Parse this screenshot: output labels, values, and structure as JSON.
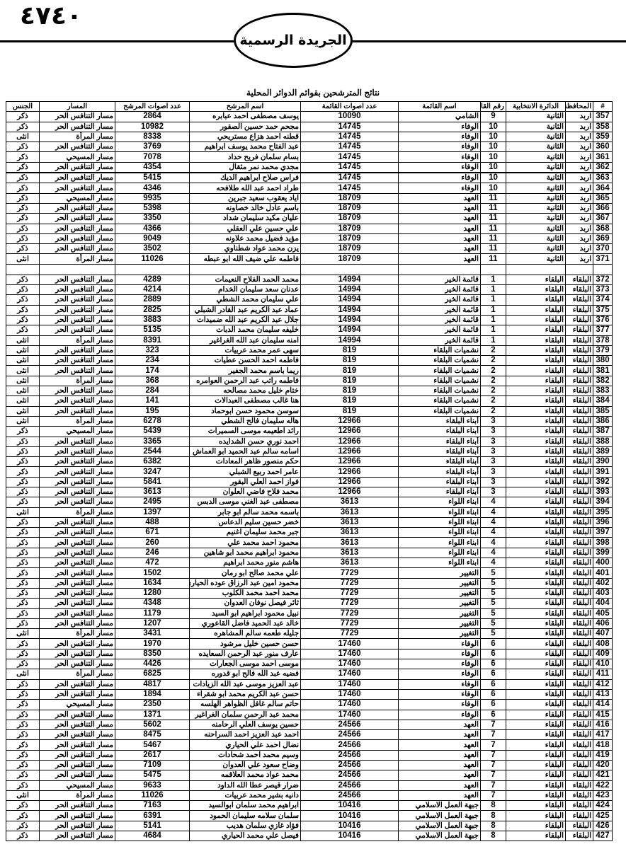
{
  "header": {
    "page_number": "٤٧٤٠",
    "gazette_name": "الجريدة الرسمية"
  },
  "table": {
    "title": "نتائج المترشحين بقوائم الدوائر المحلية",
    "columns": [
      "#",
      "المحافظة",
      "الدائرة الانتخابية",
      "رقم القائمة",
      "اسم القائمة",
      "عدد اصوات القائمة",
      "اسم المرشح",
      "عدد اصوات المرشح",
      "المسار",
      "الجنس"
    ],
    "groups": [
      [
        [
          "357",
          "اربد",
          "الثانية",
          "9",
          "الشامي",
          "10090",
          "يوسف مصطفى احمد عبابره",
          "2864",
          "مسار التنافس الحر",
          "ذكر"
        ],
        [
          "358",
          "اربد",
          "الثانية",
          "10",
          "الوفاء",
          "14745",
          "مجحم حمد حسين الصقور",
          "10982",
          "مسار التنافس الحر",
          "ذكر"
        ],
        [
          "359",
          "اربد",
          "الثانية",
          "10",
          "الوفاء",
          "14745",
          "قطنه احمد هزاع مستريحي",
          "8338",
          "مسار المرأة",
          "انثى"
        ],
        [
          "360",
          "اربد",
          "الثانية",
          "10",
          "الوفاء",
          "14745",
          "عبد الفتاح محمد يوسف ابراهيم",
          "3769",
          "مسار التنافس الحر",
          "ذكر"
        ],
        [
          "361",
          "اربد",
          "الثانية",
          "10",
          "الوفاء",
          "14745",
          "بسام سلمان فريح حداد",
          "7078",
          "مسار المسيحي",
          "ذكر"
        ],
        [
          "362",
          "اربد",
          "الثانية",
          "10",
          "الوفاء",
          "14745",
          "مجدي محمد نمر مثقال",
          "4354",
          "مسار التنافس الحر",
          "ذكر"
        ],
        [
          "363",
          "اربد",
          "الثانية",
          "10",
          "الوفاء",
          "14745",
          "فراس صلاح ابراهيم الديك",
          "5415",
          "مسار التنافس الحر",
          "ذكر"
        ],
        [
          "364",
          "اربد",
          "الثانية",
          "10",
          "الوفاء",
          "14745",
          "طراد احمد عبد الله طلافحه",
          "4346",
          "مسار التنافس الحر",
          "ذكر"
        ],
        [
          "365",
          "اربد",
          "الثانية",
          "11",
          "العهد",
          "18709",
          "اياد يعقوب سعيد جبرين",
          "9935",
          "مسار المسيحي",
          "ذكر"
        ],
        [
          "366",
          "اربد",
          "الثانية",
          "11",
          "العهد",
          "18709",
          "باسم عادل خالد خصاونه",
          "5398",
          "مسار التنافس الحر",
          "ذكر"
        ],
        [
          "367",
          "اربد",
          "الثانية",
          "11",
          "العهد",
          "18709",
          "عليان مكيد سليمان شداد",
          "3350",
          "مسار التنافس الحر",
          "ذكر"
        ],
        [
          "368",
          "اربد",
          "الثانية",
          "11",
          "العهد",
          "18709",
          "علي حسين علي العقلي",
          "4366",
          "مسار التنافس الحر",
          "ذكر"
        ],
        [
          "369",
          "اربد",
          "الثانية",
          "11",
          "العهد",
          "18709",
          "مؤيد فضيل محمد علاونه",
          "9049",
          "مسار التنافس الحر",
          "ذكر"
        ],
        [
          "370",
          "اربد",
          "الثانية",
          "11",
          "العهد",
          "18709",
          "يزن محمد عواد شطناوي",
          "3502",
          "مسار التنافس الحر",
          "ذكر"
        ],
        [
          "371",
          "اربد",
          "الثانية",
          "11",
          "العهد",
          "18709",
          "فاطمه علي ضيف الله ابو عبطه",
          "11026",
          "مسار المرأة",
          "انثى"
        ]
      ],
      [
        [
          "372",
          "البلقاء",
          "البلقاء",
          "1",
          "قائمة الخير",
          "14994",
          "محمد الحمد الفلاح النعيمات",
          "4289",
          "مسار التنافس الحر",
          "ذكر"
        ],
        [
          "373",
          "البلقاء",
          "البلقاء",
          "1",
          "قائمة الخير",
          "14994",
          "عدنان سعد سليمان الخدام",
          "4214",
          "مسار التنافس الحر",
          "ذكر"
        ],
        [
          "374",
          "البلقاء",
          "البلقاء",
          "1",
          "قائمة الخير",
          "14994",
          "علي سليمان محمد الشطي",
          "2889",
          "مسار التنافس الحر",
          "ذكر"
        ],
        [
          "375",
          "البلقاء",
          "البلقاء",
          "1",
          "قائمة الخير",
          "14994",
          "عماد عبد الكريم عبد القادر الشبلي",
          "2825",
          "مسار التنافس الحر",
          "ذكر"
        ],
        [
          "376",
          "البلقاء",
          "البلقاء",
          "1",
          "قائمة الخير",
          "14994",
          "جلال عبد الكريم عبد الله ضميدات",
          "3883",
          "مسار التنافس الحر",
          "ذكر"
        ],
        [
          "377",
          "البلقاء",
          "البلقاء",
          "1",
          "قائمة الخير",
          "14994",
          "خليفه سليمان محمد الدبات",
          "5135",
          "مسار التنافس الحر",
          "ذكر"
        ],
        [
          "378",
          "البلقاء",
          "البلقاء",
          "1",
          "قائمة الخير",
          "14994",
          "امنه سليمان عبد الله الغراغير",
          "8391",
          "مسار المرأة",
          "انثى"
        ],
        [
          "379",
          "البلقاء",
          "البلقاء",
          "2",
          "نشميات البلقاء",
          "819",
          "سهى عمر محمد عربيات",
          "323",
          "مسار التنافس الحر",
          "انثى"
        ],
        [
          "380",
          "البلقاء",
          "البلقاء",
          "2",
          "نشميات البلقاء",
          "819",
          "فاطمه احمد الحسن عطيات",
          "234",
          "مسار التنافس الحر",
          "انثى"
        ],
        [
          "381",
          "البلقاء",
          "البلقاء",
          "2",
          "نشميات البلقاء",
          "819",
          "ريما باسم محمد الجفير",
          "174",
          "مسار التنافس الحر",
          "انثى"
        ],
        [
          "382",
          "البلقاء",
          "البلقاء",
          "2",
          "نشميات البلقاء",
          "819",
          "فاطمه راتب عبد الرحمن العوامره",
          "368",
          "مسار المرأة",
          "انثى"
        ],
        [
          "383",
          "البلقاء",
          "البلقاء",
          "2",
          "نشميات البلقاء",
          "819",
          "ختام خليل محمد مصالحه",
          "284",
          "مسار التنافس الحر",
          "انثى"
        ],
        [
          "384",
          "البلقاء",
          "البلقاء",
          "2",
          "نشميات البلقاء",
          "819",
          "هنا غالب مصطفى العبدالات",
          "141",
          "مسار التنافس الحر",
          "انثى"
        ],
        [
          "385",
          "البلقاء",
          "البلقاء",
          "2",
          "نشميات البلقاء",
          "819",
          "سوسن محمود حسن ابوحماد",
          "195",
          "مسار التنافس الحر",
          "انثى"
        ],
        [
          "386",
          "البلقاء",
          "البلقاء",
          "3",
          "أبناء البلقاء",
          "12966",
          "هاله سليمان فالح الشطي",
          "6278",
          "مسار المرأة",
          "انثى"
        ],
        [
          "387",
          "البلقاء",
          "البلقاء",
          "3",
          "أبناء البلقاء",
          "12966",
          "رائد اطعيمه موسى السميرات",
          "5439",
          "مسار المسيحي",
          "ذكر"
        ],
        [
          "388",
          "البلقاء",
          "البلقاء",
          "3",
          "أبناء البلقاء",
          "12966",
          "احمد نوري حسن الشدايده",
          "3365",
          "مسار التنافس الحر",
          "ذكر"
        ],
        [
          "389",
          "البلقاء",
          "البلقاء",
          "3",
          "أبناء البلقاء",
          "12966",
          "اسامه سالم عبد الحميد ابو العماش",
          "2544",
          "مسار التنافس الحر",
          "ذكر"
        ],
        [
          "390",
          "البلقاء",
          "البلقاء",
          "3",
          "أبناء البلقاء",
          "12966",
          "حكم منصور ظاهر المعادات",
          "6382",
          "مسار التنافس الحر",
          "ذكر"
        ],
        [
          "391",
          "البلقاء",
          "البلقاء",
          "3",
          "أبناء البلقاء",
          "12966",
          "عامر احمد ربيع الشبلي",
          "3247",
          "مسار التنافس الحر",
          "ذكر"
        ],
        [
          "392",
          "البلقاء",
          "البلقاء",
          "3",
          "أبناء البلقاء",
          "12966",
          "فواز احمد العلي البقور",
          "5841",
          "مسار التنافس الحر",
          "ذكر"
        ],
        [
          "393",
          "البلقاء",
          "البلقاء",
          "3",
          "أبناء البلقاء",
          "12966",
          "محمد فلاح فاضي العلوان",
          "3613",
          "مسار التنافس الحر",
          "ذكر"
        ],
        [
          "394",
          "البلقاء",
          "البلقاء",
          "4",
          "ابناء اللواء",
          "3613",
          "مصطفى عبد الغني موسى الدبس",
          "2495",
          "مسار التنافس الحر",
          "ذكر"
        ],
        [
          "395",
          "البلقاء",
          "البلقاء",
          "4",
          "ابناء اللواء",
          "3613",
          "باسمه محمد سالم ابو جابر",
          "1397",
          "مسار المرأة",
          "انثى"
        ],
        [
          "396",
          "البلقاء",
          "البلقاء",
          "4",
          "ابناء اللواء",
          "3613",
          "خضر حسين سليم الدعاس",
          "488",
          "مسار التنافس الحر",
          "ذكر"
        ],
        [
          "397",
          "البلقاء",
          "البلقاء",
          "4",
          "ابناء اللواء",
          "3613",
          "جبر محمد سليمان اغنيم",
          "671",
          "مسار التنافس الحر",
          "ذكر"
        ],
        [
          "398",
          "البلقاء",
          "البلقاء",
          "4",
          "ابناء اللواء",
          "3613",
          "محمود احمد محمد علي",
          "260",
          "مسار التنافس الحر",
          "ذكر"
        ],
        [
          "399",
          "البلقاء",
          "البلقاء",
          "4",
          "ابناء اللواء",
          "3613",
          "محمود ابراهيم محمد ابو شاهين",
          "246",
          "مسار التنافس الحر",
          "ذكر"
        ],
        [
          "400",
          "البلقاء",
          "البلقاء",
          "4",
          "ابناء اللواء",
          "3613",
          "هاشم منور محمد ابراهيم",
          "472",
          "مسار التنافس الحر",
          "ذكر"
        ],
        [
          "401",
          "البلقاء",
          "البلقاء",
          "5",
          "التغيير",
          "7729",
          "علي محمد صالح ابو رمان",
          "1502",
          "مسار التنافس الحر",
          "ذكر"
        ],
        [
          "402",
          "البلقاء",
          "البلقاء",
          "5",
          "التغيير",
          "7729",
          "محمود امين عبد الرزاق عوده الحياري",
          "1634",
          "مسار التنافس الحر",
          "ذكر"
        ],
        [
          "403",
          "البلقاء",
          "البلقاء",
          "5",
          "التغيير",
          "7729",
          "محمد احمد محمد الكلوب",
          "1280",
          "مسار التنافس الحر",
          "ذكر"
        ],
        [
          "404",
          "البلقاء",
          "البلقاء",
          "5",
          "التغيير",
          "7729",
          "ثائر فيصل نوفان العدوان",
          "4348",
          "مسار التنافس الحر",
          "ذكر"
        ],
        [
          "405",
          "البلقاء",
          "البلقاء",
          "5",
          "التغيير",
          "7729",
          "نبيل محمود ابراهيم ابو السيد",
          "1179",
          "مسار التنافس الحر",
          "ذكر"
        ],
        [
          "406",
          "البلقاء",
          "البلقاء",
          "5",
          "التغيير",
          "7729",
          "خالد عبد الحميد فاضل القاعوري",
          "1207",
          "مسار التنافس الحر",
          "ذكر"
        ],
        [
          "407",
          "البلقاء",
          "البلقاء",
          "5",
          "التغيير",
          "7729",
          "جليله طعمه سالم المشاهره",
          "3431",
          "مسار المرأة",
          "انثى"
        ],
        [
          "408",
          "البلقاء",
          "البلقاء",
          "6",
          "الوفاء",
          "17460",
          "حسن حسين خليل مرشود",
          "1970",
          "مسار التنافس الحر",
          "ذكر"
        ],
        [
          "409",
          "البلقاء",
          "البلقاء",
          "6",
          "الوفاء",
          "17460",
          "عارف منور عبد الرحمن السعايده",
          "8350",
          "مسار التنافس الحر",
          "ذكر"
        ],
        [
          "410",
          "البلقاء",
          "البلقاء",
          "6",
          "الوفاء",
          "17460",
          "موسى احمد موسى الجعارات",
          "4426",
          "مسار التنافس الحر",
          "ذكر"
        ],
        [
          "411",
          "البلقاء",
          "البلقاء",
          "6",
          "الوفاء",
          "17460",
          "فضيه عبد الله فالح ابو قدوره",
          "6825",
          "مسار المرأة",
          "انثى"
        ],
        [
          "412",
          "البلقاء",
          "البلقاء",
          "6",
          "الوفاء",
          "17460",
          "عبد العزيز موسى عبد الله الزيادات",
          "4817",
          "مسار التنافس الحر",
          "ذكر"
        ],
        [
          "413",
          "البلقاء",
          "البلقاء",
          "6",
          "الوفاء",
          "17460",
          "حسن عبد الكريم محمد ابو شقراء",
          "1894",
          "مسار التنافس الحر",
          "ذكر"
        ],
        [
          "414",
          "البلقاء",
          "البلقاء",
          "6",
          "الوفاء",
          "17460",
          "حاتم سالم غافل الظواهر الهلسه",
          "2350",
          "مسار المسيحي",
          "ذكر"
        ],
        [
          "415",
          "البلقاء",
          "البلقاء",
          "6",
          "الوفاء",
          "17460",
          "محمد عبد الرحمن سلمان الغراغير",
          "1371",
          "مسار التنافس الحر",
          "ذكر"
        ],
        [
          "416",
          "البلقاء",
          "البلقاء",
          "7",
          "العهد",
          "24566",
          "حسين يوسف العلي الرحامنه",
          "5602",
          "مسار التنافس الحر",
          "ذكر"
        ],
        [
          "417",
          "البلقاء",
          "البلقاء",
          "7",
          "العهد",
          "24566",
          "احمد عبد العزيز احمد السراحنه",
          "8475",
          "مسار التنافس الحر",
          "ذكر"
        ],
        [
          "418",
          "البلقاء",
          "البلقاء",
          "7",
          "العهد",
          "24566",
          "نضال احمد علي الحياري",
          "5467",
          "مسار التنافس الحر",
          "ذكر"
        ],
        [
          "419",
          "البلقاء",
          "البلقاء",
          "7",
          "العهد",
          "24566",
          "وسيم محمد احمد شحادات",
          "2617",
          "مسار التنافس الحر",
          "ذكر"
        ],
        [
          "420",
          "البلقاء",
          "البلقاء",
          "7",
          "العهد",
          "24566",
          "وضاح سعود علي العدوان",
          "7109",
          "مسار التنافس الحر",
          "ذكر"
        ],
        [
          "421",
          "البلقاء",
          "البلقاء",
          "7",
          "العهد",
          "24566",
          "محمد عواد محمد العلاقمه",
          "5475",
          "مسار التنافس الحر",
          "ذكر"
        ],
        [
          "422",
          "البلقاء",
          "البلقاء",
          "7",
          "العهد",
          "24566",
          "ضرار قيصر عطا الله الداود",
          "9633",
          "مسار المسيحي",
          "ذكر"
        ],
        [
          "423",
          "البلقاء",
          "البلقاء",
          "7",
          "العهد",
          "24566",
          "دانيه بشير محمد عربيات",
          "11026",
          "مسار المرأة",
          "انثى"
        ],
        [
          "424",
          "البلقاء",
          "البلقاء",
          "8",
          "جبهة العمل الاسلامي",
          "10416",
          "ابراهيم محمد سلمان ابوالسيد",
          "7163",
          "مسار التنافس الحر",
          "ذكر"
        ],
        [
          "425",
          "البلقاء",
          "البلقاء",
          "8",
          "جبهة العمل الاسلامي",
          "10416",
          "سلمان سلامه سليمان الحمود",
          "6391",
          "مسار التنافس الحر",
          "ذكر"
        ],
        [
          "426",
          "البلقاء",
          "البلقاء",
          "8",
          "جبهة العمل الاسلامي",
          "10416",
          "فؤاد غازي سلمان هديب",
          "5141",
          "مسار التنافس الحر",
          "ذكر"
        ],
        [
          "427",
          "البلقاء",
          "البلقاء",
          "8",
          "جبهة العمل الاسلامي",
          "10416",
          "فيصل علي محمد الحياري",
          "4684",
          "مسار التنافس الحر",
          "ذكر"
        ]
      ]
    ]
  }
}
